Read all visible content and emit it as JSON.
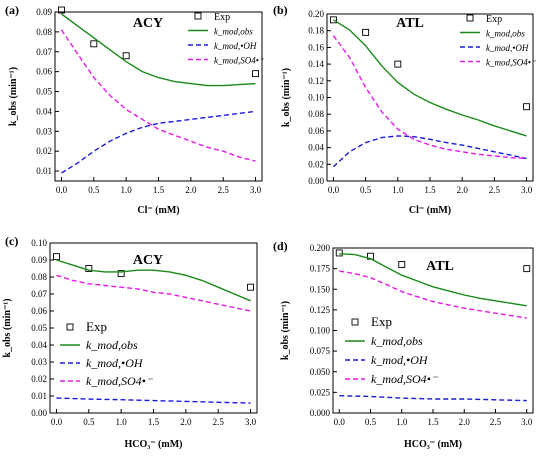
{
  "figure": {
    "panels": [
      "a",
      "b",
      "c",
      "d"
    ]
  },
  "chart_data": [
    {
      "type": "line",
      "panel_label": "(a)",
      "title": "ACY",
      "xlabel": "Cl⁻ (mM)",
      "ylabel": "k_obs (min⁻¹)",
      "xlim": [
        -0.1,
        3.1
      ],
      "ylim": [
        0.005,
        0.09
      ],
      "xticks": [
        "0.0",
        "0.5",
        "1.0",
        "1.5",
        "2.0",
        "2.5",
        "3.0"
      ],
      "yticks": [
        "0.01",
        "0.02",
        "0.03",
        "0.04",
        "0.05",
        "0.06",
        "0.07",
        "0.08",
        "0.09"
      ],
      "legend_position": "top-right",
      "series": [
        {
          "name": "Exp",
          "kind": "scatter",
          "color": "#000000",
          "x": [
            0,
            0.5,
            1.0,
            3.0
          ],
          "y": [
            0.091,
            0.074,
            0.068,
            0.059
          ]
        },
        {
          "name": "k_mod,obs",
          "kind": "line",
          "style": "solid",
          "color": "#1a8a1a",
          "x": [
            0,
            0.25,
            0.5,
            0.75,
            1.0,
            1.25,
            1.5,
            1.75,
            2.0,
            2.25,
            2.5,
            2.75,
            3.0
          ],
          "y": [
            0.089,
            0.083,
            0.077,
            0.071,
            0.065,
            0.06,
            0.057,
            0.055,
            0.054,
            0.053,
            0.053,
            0.0535,
            0.054
          ]
        },
        {
          "name": "k_mod,•OH",
          "kind": "line",
          "style": "dashed",
          "color": "#1a1adc",
          "x": [
            0,
            0.25,
            0.5,
            0.75,
            1.0,
            1.25,
            1.5,
            1.75,
            2.0,
            2.25,
            2.5,
            2.75,
            3.0
          ],
          "y": [
            0.009,
            0.014,
            0.02,
            0.025,
            0.029,
            0.032,
            0.034,
            0.035,
            0.036,
            0.037,
            0.038,
            0.039,
            0.04
          ]
        },
        {
          "name": "k_mod,SO4•⁻",
          "kind": "line",
          "style": "dashed",
          "color": "#e61ae6",
          "x": [
            0,
            0.25,
            0.5,
            0.75,
            1.0,
            1.25,
            1.5,
            1.75,
            2.0,
            2.25,
            2.5,
            2.75,
            3.0
          ],
          "y": [
            0.081,
            0.069,
            0.057,
            0.048,
            0.041,
            0.036,
            0.031,
            0.028,
            0.025,
            0.022,
            0.02,
            0.017,
            0.015
          ]
        }
      ]
    },
    {
      "type": "line",
      "panel_label": "(b)",
      "title": "ATL",
      "xlabel": "Cl⁻ (mM)",
      "ylabel": "k_obs (min⁻¹)",
      "xlim": [
        -0.1,
        3.1
      ],
      "ylim": [
        0.0,
        0.2
      ],
      "xticks": [
        "0.0",
        "0.5",
        "1.0",
        "1.5",
        "2.0",
        "2.5",
        "3.0"
      ],
      "yticks": [
        "0.00",
        "0.02",
        "0.04",
        "0.06",
        "0.08",
        "0.10",
        "0.12",
        "0.14",
        "0.16",
        "0.18",
        "0.20"
      ],
      "legend_position": "top-right",
      "series": [
        {
          "name": "Exp",
          "kind": "scatter",
          "color": "#000000",
          "x": [
            0,
            0.5,
            1.0,
            3.0
          ],
          "y": [
            0.193,
            0.178,
            0.14,
            0.089
          ]
        },
        {
          "name": "k_mod,obs",
          "kind": "line",
          "style": "solid",
          "color": "#1a8a1a",
          "x": [
            0,
            0.25,
            0.5,
            0.75,
            1.0,
            1.25,
            1.5,
            1.75,
            2.0,
            2.25,
            2.5,
            2.75,
            3.0
          ],
          "y": [
            0.193,
            0.181,
            0.162,
            0.138,
            0.118,
            0.104,
            0.094,
            0.086,
            0.079,
            0.073,
            0.066,
            0.06,
            0.054
          ]
        },
        {
          "name": "k_mod,•OH",
          "kind": "line",
          "style": "dashed",
          "color": "#1a1adc",
          "x": [
            0,
            0.25,
            0.5,
            0.75,
            1.0,
            1.25,
            1.5,
            1.75,
            2.0,
            2.25,
            2.5,
            2.75,
            3.0
          ],
          "y": [
            0.017,
            0.035,
            0.046,
            0.052,
            0.054,
            0.053,
            0.05,
            0.046,
            0.043,
            0.039,
            0.035,
            0.031,
            0.027
          ]
        },
        {
          "name": "k_mod,SO4•⁻",
          "kind": "line",
          "style": "dashed",
          "color": "#e61ae6",
          "x": [
            0,
            0.25,
            0.5,
            0.75,
            1.0,
            1.25,
            1.5,
            1.75,
            2.0,
            2.25,
            2.5,
            2.75,
            3.0
          ],
          "y": [
            0.174,
            0.148,
            0.112,
            0.083,
            0.062,
            0.05,
            0.043,
            0.038,
            0.035,
            0.032,
            0.03,
            0.028,
            0.027
          ]
        }
      ]
    },
    {
      "type": "line",
      "panel_label": "(c)",
      "title": "ACY",
      "xlabel": "HCO₃⁻ (mM)",
      "ylabel": "k_obs (min⁻¹)",
      "xlim": [
        -0.1,
        3.1
      ],
      "ylim": [
        0.0,
        0.1
      ],
      "xticks": [
        "0.0",
        "0.5",
        "1.0",
        "1.5",
        "2.0",
        "2.5",
        "3.0"
      ],
      "yticks": [
        "0.00",
        "0.01",
        "0.02",
        "0.03",
        "0.04",
        "0.05",
        "0.06",
        "0.07",
        "0.08",
        "0.09",
        "0.10"
      ],
      "legend_position": "middle-left",
      "series": [
        {
          "name": "Exp",
          "kind": "scatter",
          "color": "#000000",
          "x": [
            0,
            0.5,
            1.0,
            3.0
          ],
          "y": [
            0.092,
            0.085,
            0.082,
            0.074
          ]
        },
        {
          "name": "k_mod,obs",
          "kind": "line",
          "style": "solid",
          "color": "#1a8a1a",
          "x": [
            0,
            0.25,
            0.5,
            0.75,
            1.0,
            1.25,
            1.5,
            1.75,
            2.0,
            2.25,
            2.5,
            2.75,
            3.0
          ],
          "y": [
            0.09,
            0.087,
            0.084,
            0.083,
            0.083,
            0.084,
            0.084,
            0.083,
            0.081,
            0.078,
            0.074,
            0.07,
            0.066
          ]
        },
        {
          "name": "k_mod,•OH",
          "kind": "line",
          "style": "dashed",
          "color": "#1a1adc",
          "x": [
            0,
            0.5,
            1.0,
            1.5,
            2.0,
            2.5,
            3.0
          ],
          "y": [
            0.0088,
            0.0082,
            0.0078,
            0.0073,
            0.0068,
            0.0063,
            0.0058
          ]
        },
        {
          "name": "k_mod,SO4•⁻",
          "kind": "line",
          "style": "dashed",
          "color": "#e61ae6",
          "x": [
            0,
            0.25,
            0.5,
            0.75,
            1.0,
            1.25,
            1.5,
            1.75,
            2.0,
            2.25,
            2.5,
            2.75,
            3.0
          ],
          "y": [
            0.081,
            0.078,
            0.076,
            0.075,
            0.074,
            0.073,
            0.071,
            0.07,
            0.068,
            0.066,
            0.064,
            0.062,
            0.06
          ]
        }
      ]
    },
    {
      "type": "line",
      "panel_label": "(d)",
      "title": "ATL",
      "xlabel": "HCO₃⁻ (mM)",
      "ylabel": "k_obs (min⁻¹)",
      "xlim": [
        -0.1,
        3.1
      ],
      "ylim": [
        0.0,
        0.2
      ],
      "xticks": [
        "0.0",
        "0.5",
        "1.0",
        "1.5",
        "2.0",
        "2.5",
        "3.0"
      ],
      "yticks": [
        "0.000",
        "0.025",
        "0.050",
        "0.075",
        "0.100",
        "0.125",
        "0.150",
        "0.175",
        "0.200"
      ],
      "legend_position": "middle-left",
      "series": [
        {
          "name": "Exp",
          "kind": "scatter",
          "color": "#000000",
          "x": [
            0,
            0.5,
            1.0,
            3.0
          ],
          "y": [
            0.194,
            0.19,
            0.18,
            0.175
          ]
        },
        {
          "name": "k_mod,obs",
          "kind": "line",
          "style": "solid",
          "color": "#1a8a1a",
          "x": [
            0,
            0.25,
            0.5,
            0.75,
            1.0,
            1.25,
            1.5,
            1.75,
            2.0,
            2.25,
            2.5,
            2.75,
            3.0
          ],
          "y": [
            0.193,
            0.192,
            0.187,
            0.177,
            0.167,
            0.16,
            0.153,
            0.148,
            0.143,
            0.139,
            0.136,
            0.133,
            0.13
          ]
        },
        {
          "name": "k_mod,•OH",
          "kind": "line",
          "style": "dashed",
          "color": "#1a1adc",
          "x": [
            0,
            0.5,
            1.0,
            1.5,
            2.0,
            2.5,
            3.0
          ],
          "y": [
            0.021,
            0.02,
            0.018,
            0.017,
            0.017,
            0.016,
            0.015
          ]
        },
        {
          "name": "k_mod,SO4•⁻",
          "kind": "line",
          "style": "dashed",
          "color": "#e61ae6",
          "x": [
            0,
            0.25,
            0.5,
            0.75,
            1.0,
            1.25,
            1.5,
            1.75,
            2.0,
            2.25,
            2.5,
            2.75,
            3.0
          ],
          "y": [
            0.172,
            0.169,
            0.164,
            0.156,
            0.147,
            0.141,
            0.135,
            0.131,
            0.127,
            0.124,
            0.121,
            0.118,
            0.115
          ]
        }
      ]
    }
  ]
}
